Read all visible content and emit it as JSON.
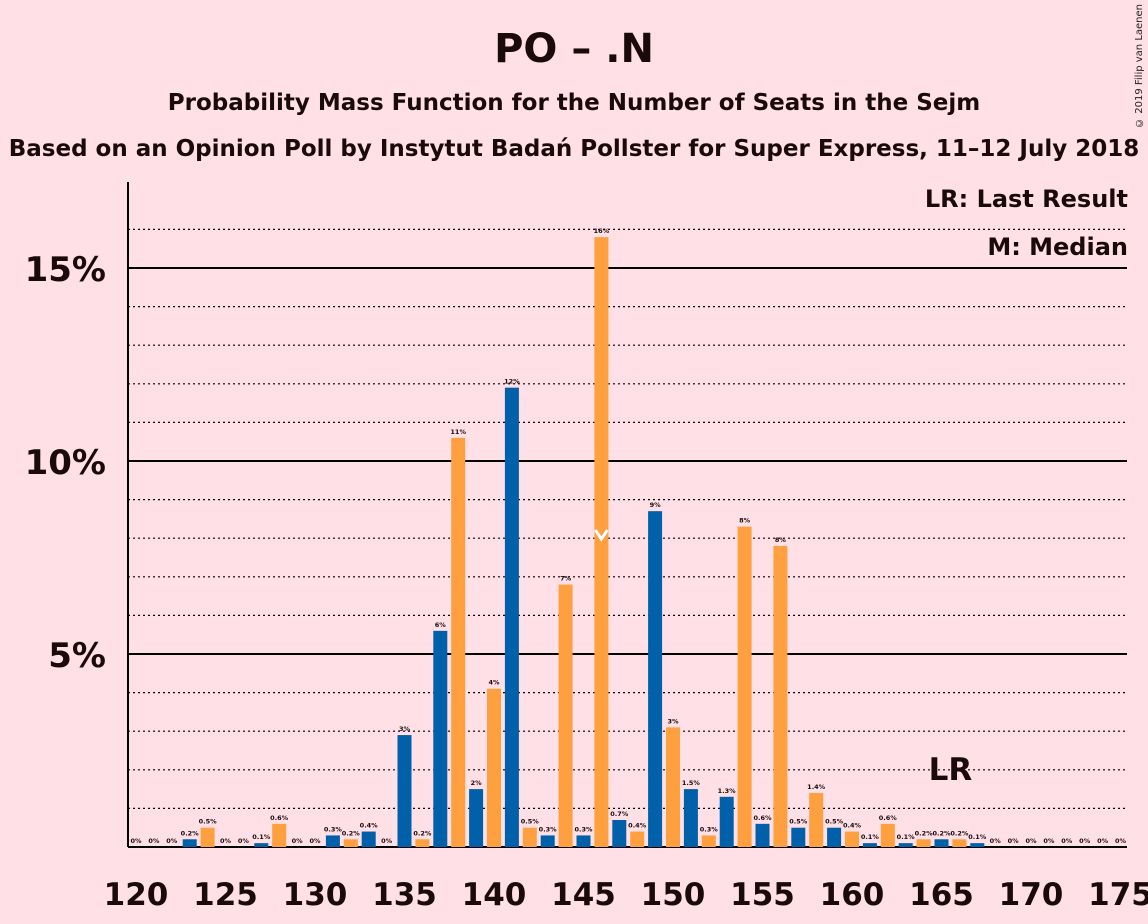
{
  "title": "PO – .N",
  "subtitle": "Probability Mass Function for the Number of Seats in the Sejm",
  "subtitle2": "Based on an Opinion Poll by Instytut Badań Pollster for Super Express, 11–12 July 2018",
  "legend": {
    "lr": "LR: Last Result",
    "median": "M: Median"
  },
  "copyright": "© 2019 Filip van Laenen",
  "colors": {
    "background": "#FFE0E6",
    "blue": "#0060AA",
    "orange": "#FFA040",
    "text": "#1a0a0a"
  },
  "chart_data": {
    "type": "bar",
    "xlim": [
      120,
      175
    ],
    "ylim": [
      0,
      17
    ],
    "y_ticks": [
      5,
      10,
      15
    ],
    "y_tick_labels": [
      "5%",
      "10%",
      "15%"
    ],
    "x_ticks": [
      120,
      125,
      130,
      135,
      140,
      145,
      150,
      155,
      160,
      165,
      170,
      175
    ],
    "x_tick_labels": [
      "120",
      "125",
      "130",
      "135",
      "140",
      "145",
      "150",
      "155",
      "160",
      "165",
      "170",
      "175"
    ],
    "last_result": {
      "seats": 166,
      "label": "LR"
    },
    "median": 146,
    "seats": [
      120,
      121,
      122,
      123,
      124,
      125,
      126,
      127,
      128,
      129,
      130,
      131,
      132,
      133,
      134,
      135,
      136,
      137,
      138,
      139,
      140,
      141,
      142,
      143,
      144,
      145,
      146,
      147,
      148,
      149,
      150,
      151,
      152,
      153,
      154,
      155,
      156,
      157,
      158,
      159,
      160,
      161,
      162,
      163,
      164,
      165,
      166,
      167,
      168,
      169,
      170,
      171,
      172,
      173,
      174,
      175
    ],
    "values": [
      0,
      0,
      0,
      0.2,
      0.5,
      0,
      0,
      0.1,
      0.6,
      0,
      0,
      0.3,
      0.2,
      0.4,
      0,
      2.9,
      0.2,
      5.6,
      10.6,
      1.5,
      4.1,
      11.9,
      0.5,
      0.3,
      6.8,
      0.3,
      15.8,
      0.7,
      0.4,
      8.7,
      3.1,
      1.5,
      0.3,
      1.3,
      8.3,
      0.6,
      7.8,
      0.5,
      1.4,
      0.5,
      0.4,
      0.1,
      0.6,
      0.1,
      0.2,
      0.2,
      0.2,
      0.1,
      0,
      0,
      0,
      0,
      0,
      0,
      0,
      0
    ],
    "labels": [
      "0%",
      "0%",
      "0%",
      "0.2%",
      "0.5%",
      "0%",
      "0%",
      "0.1%",
      "0.6%",
      "0%",
      "0%",
      "0.3%",
      "0.2%",
      "0.4%",
      "0%",
      "3%",
      "0.2%",
      "6%",
      "11%",
      "2%",
      "4%",
      "12%",
      "0.5%",
      "0.3%",
      "7%",
      "0.3%",
      "16%",
      "0.7%",
      "0.4%",
      "9%",
      "3%",
      "1.5%",
      "0.3%",
      "1.3%",
      "8%",
      "0.6%",
      "8%",
      "0.5%",
      "1.4%",
      "0.5%",
      "0.4%",
      "0.1%",
      "0.6%",
      "0.1%",
      "0.2%",
      "0.2%",
      "0.2%",
      "0.1%",
      "0%",
      "0%",
      "0%",
      "0%",
      "0%",
      "0%",
      "0%",
      "0%"
    ]
  }
}
